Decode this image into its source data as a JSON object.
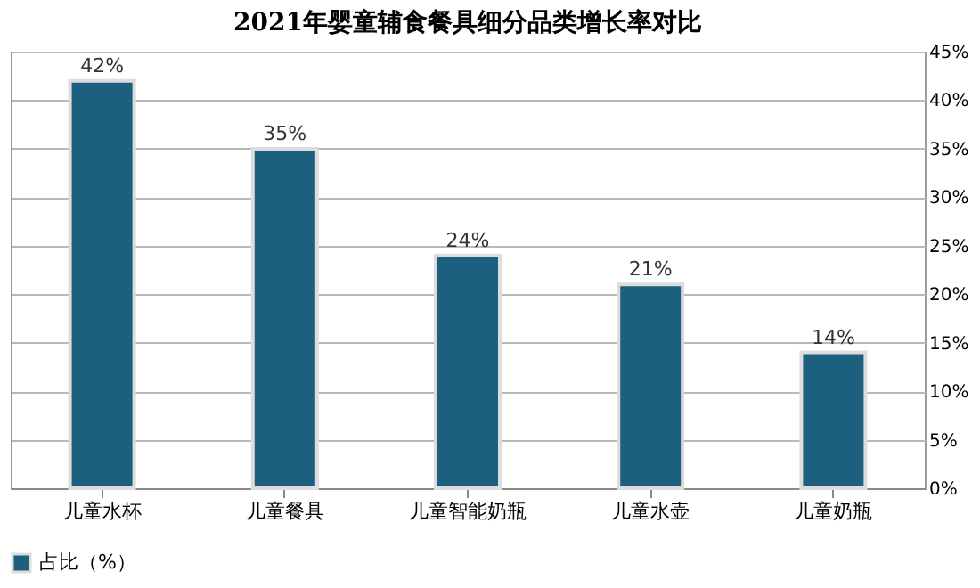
{
  "chart_data": {
    "type": "bar",
    "title": "2021年婴童辅食餐具细分品类增长率对比",
    "categories": [
      "儿童水杯",
      "儿童餐具",
      "儿童智能奶瓶",
      "儿童水壶",
      "儿童奶瓶"
    ],
    "series": [
      {
        "name": "占比（%）",
        "color": "#1c5f7e",
        "values": [
          42,
          35,
          24,
          21,
          14
        ],
        "value_labels": [
          "42%",
          "35%",
          "24%",
          "21%",
          "14%"
        ]
      }
    ],
    "ylim": [
      0,
      45
    ],
    "yticks": [
      {
        "value": 0,
        "label": "0%"
      },
      {
        "value": 5,
        "label": "5%"
      },
      {
        "value": 10,
        "label": "10%"
      },
      {
        "value": 15,
        "label": "15%"
      },
      {
        "value": 20,
        "label": "20%"
      },
      {
        "value": 25,
        "label": "25%"
      },
      {
        "value": 30,
        "label": "30%"
      },
      {
        "value": 35,
        "label": "35%"
      },
      {
        "value": 40,
        "label": "40%"
      },
      {
        "value": 45,
        "label": "45%"
      }
    ],
    "grid": "y",
    "legend": "bottom"
  }
}
